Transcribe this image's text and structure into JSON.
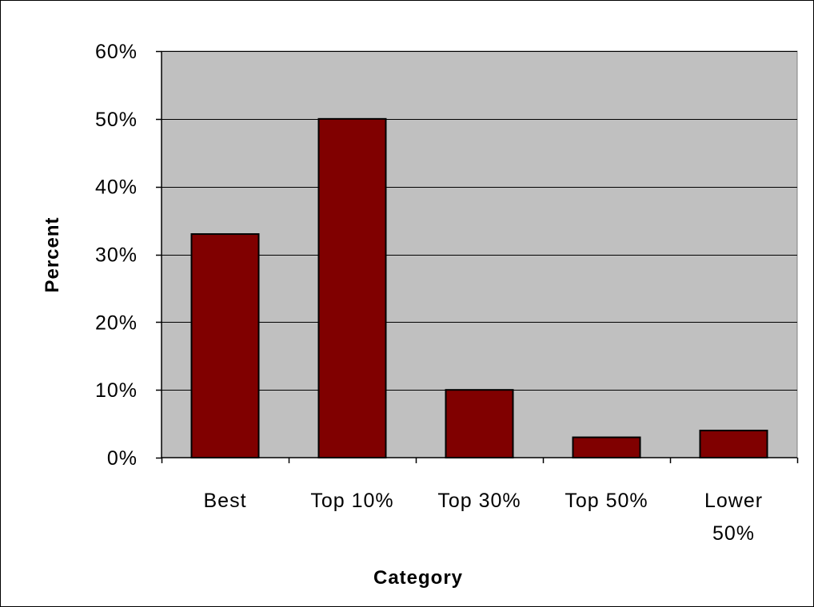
{
  "chart_data": {
    "type": "bar",
    "title": "",
    "xlabel": "Category",
    "ylabel": "Percent",
    "categories": [
      [
        "Best"
      ],
      [
        "Top 10%"
      ],
      [
        "Top 30%"
      ],
      [
        "Top 50%"
      ],
      [
        "Lower",
        "50%"
      ]
    ],
    "series": [
      {
        "values": [
          33,
          50,
          10,
          3,
          4
        ]
      }
    ],
    "ylim": [
      0,
      60
    ],
    "yticks": [
      0,
      10,
      20,
      30,
      40,
      50,
      60
    ],
    "ytick_labels": [
      "0%",
      "10%",
      "20%",
      "30%",
      "40%",
      "50%",
      "60%"
    ],
    "grid": true,
    "legend": "none",
    "colors": {
      "bar": "#800000",
      "plot_background": "#c0c0c0",
      "gridline": "#000000"
    }
  }
}
